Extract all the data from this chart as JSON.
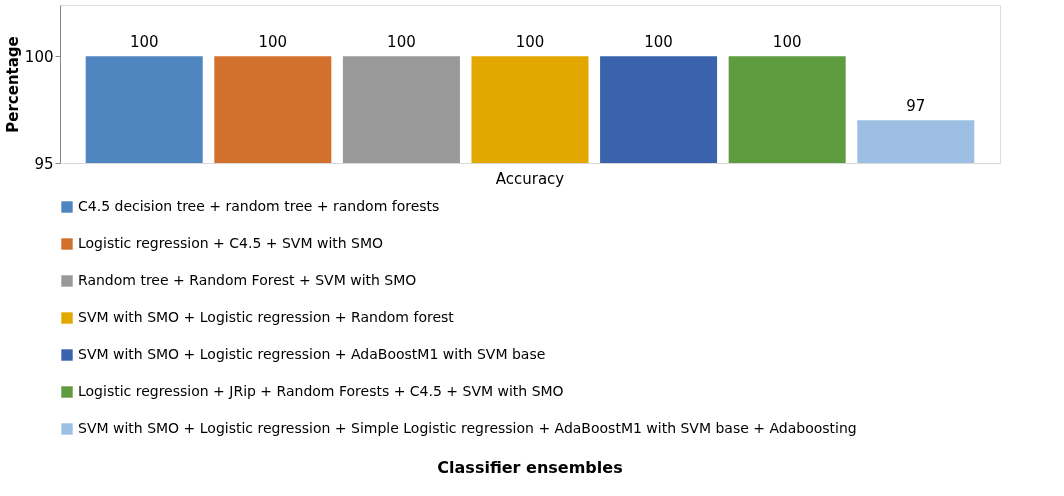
{
  "chart_data": {
    "type": "bar",
    "annotations": [
      "Classifier ensembles"
    ],
    "ylabel": "Percentage",
    "categories": [
      "Accuracy"
    ],
    "series": [
      {
        "name": "C4.5 decision tree + random tree + random forests",
        "color": "#4f86c0",
        "values": [
          100
        ]
      },
      {
        "name": "Logistic regression + C4.5 + SVM with SMO",
        "color": "#d2702e",
        "values": [
          100
        ]
      },
      {
        "name": "Random tree + Random Forest + SVM with SMO",
        "color": "#999999",
        "values": [
          100
        ]
      },
      {
        "name": "SVM with SMO + Logistic regression + Random forest",
        "color": "#e2a800",
        "values": [
          100
        ]
      },
      {
        "name": "SVM with SMO + Logistic regression + AdaBoostM1 with SVM base",
        "color": "#3a62ad",
        "values": [
          100
        ]
      },
      {
        "name": "Logistic regression + JRip + Random Forests + C4.5 + SVM with SMO",
        "color": "#5f9b3f",
        "values": [
          100
        ]
      },
      {
        "name": "SVM with SMO + Logistic regression + Simple Logistic regression + AdaBoostM1 with SVM base + Adaboosting",
        "color": "#9dbfe4",
        "values": [
          97
        ]
      }
    ],
    "ylim": [
      95,
      102.4
    ],
    "yticks": [
      95,
      100
    ],
    "grid": false,
    "legend": "bottom",
    "data_labels": true
  }
}
